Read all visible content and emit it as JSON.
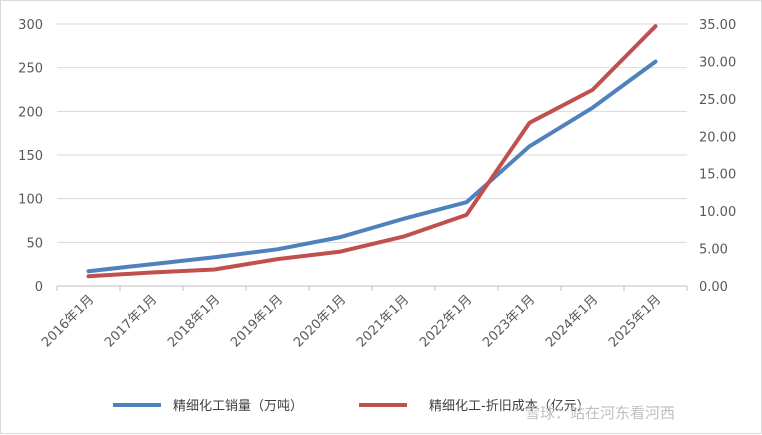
{
  "chart_data": {
    "type": "line",
    "categories": [
      "2016年1月",
      "2017年1月",
      "2018年1月",
      "2019年1月",
      "2020年1月",
      "2021年1月",
      "2022年1月",
      "2023年1月",
      "2024年1月",
      "2025年1月"
    ],
    "series": [
      {
        "name": "精细化工销量（万吨）",
        "axis": "left",
        "color": "#4f81bd",
        "values": [
          17,
          25,
          33,
          42,
          56,
          77,
          96,
          160,
          204,
          257
        ]
      },
      {
        "name": "精细化工-折旧成本（亿元）",
        "axis": "right",
        "color": "#c0504d",
        "values": [
          1.3,
          1.8,
          2.2,
          3.6,
          4.6,
          6.6,
          9.5,
          21.8,
          26.2,
          34.7
        ]
      }
    ],
    "y_left": {
      "min": 0,
      "max": 300,
      "step": 50,
      "ticks": [
        "0",
        "50",
        "100",
        "150",
        "200",
        "250",
        "300"
      ]
    },
    "y_right": {
      "min": 0,
      "max": 35,
      "step": 5,
      "ticks": [
        "0.00",
        "5.00",
        "10.00",
        "15.00",
        "20.00",
        "25.00",
        "30.00",
        "35.00"
      ]
    },
    "grid": true,
    "legend_position": "bottom"
  },
  "watermark": "雪球：站在河东看河西"
}
